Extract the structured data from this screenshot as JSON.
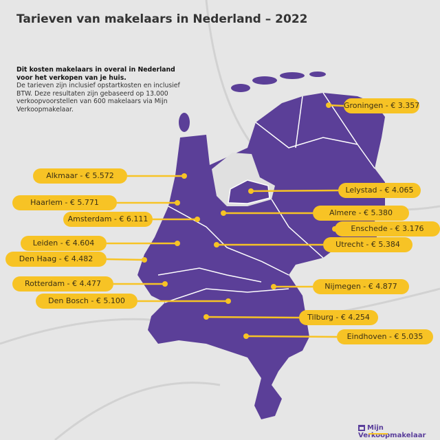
{
  "title": "Tarieven van makelaars in Nederland – 2022",
  "intro": {
    "heading": "Dit kosten makelaars in overal in Nederland voor het verkopen van je huis.",
    "body": "De tarieven zijn inclusief opstartkosten en inclusief BTW. Deze resultaten zijn gebaseerd op 13.000 verkoopvoorstellen van 600 makelaars via Mijn Verkoopmakelaar."
  },
  "colors": {
    "map": "#5b3f98",
    "label": "#f7c325",
    "background": "#e6e6e6"
  },
  "cities": [
    {
      "label": "Groningen - € 3.357"
    },
    {
      "label": "Alkmaar - € 5.572"
    },
    {
      "label": "Haarlem - € 5.771"
    },
    {
      "label": "Amsterdam - € 6.111"
    },
    {
      "label": "Lelystad - € 4.065"
    },
    {
      "label": "Almere - € 5.380"
    },
    {
      "label": "Enschede - € 3.176"
    },
    {
      "label": "Leiden - € 4.604"
    },
    {
      "label": "Utrecht - € 5.384"
    },
    {
      "label": "Den Haag - € 4.482"
    },
    {
      "label": "Rotterdam - € 4.477"
    },
    {
      "label": "Nijmegen - € 4.877"
    },
    {
      "label": "Den Bosch - € 5.100"
    },
    {
      "label": "Tilburg - € 4.254"
    },
    {
      "label": "Eindhoven - € 5.035"
    }
  ],
  "logo": {
    "text": "Mijn Verkoopmakelaar"
  }
}
